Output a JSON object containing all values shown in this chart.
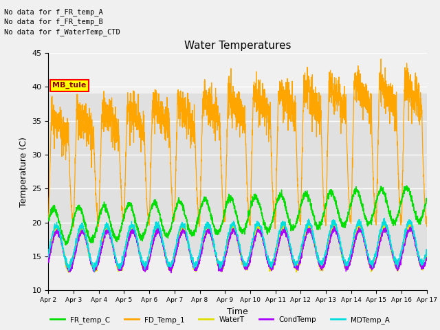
{
  "title": "Water Temperatures",
  "xlabel": "Time",
  "ylabel": "Temperature (C)",
  "ylim": [
    10,
    45
  ],
  "xlim": [
    0,
    15
  ],
  "x_tick_labels": [
    "Apr 2",
    "Apr 3",
    "Apr 4",
    "Apr 5",
    "Apr 6",
    "Apr 7",
    "Apr 8",
    "Apr 9",
    "Apr 10",
    "Apr 11",
    "Apr 12",
    "Apr 13",
    "Apr 14",
    "Apr 15",
    "Apr 16",
    "Apr 17"
  ],
  "legend_labels": [
    "FR_temp_C",
    "FD_Temp_1",
    "WaterT",
    "CondTemp",
    "MDTemp_A"
  ],
  "legend_colors": [
    "#00dd00",
    "#ffa500",
    "#dddd00",
    "#aa00ff",
    "#00dddd"
  ],
  "no_data_texts": [
    "No data for f_FR_temp_A",
    "No data for f_FR_temp_B",
    "No data for f_WaterTemp_CTD"
  ],
  "annotation_box": "MB_tule",
  "shaded_band": [
    15,
    39
  ],
  "shaded_color": "#e0e0e0",
  "background_color": "#f0f0f0",
  "grid_color": "#ffffff",
  "yticks": [
    10,
    15,
    20,
    25,
    30,
    35,
    40,
    45
  ]
}
